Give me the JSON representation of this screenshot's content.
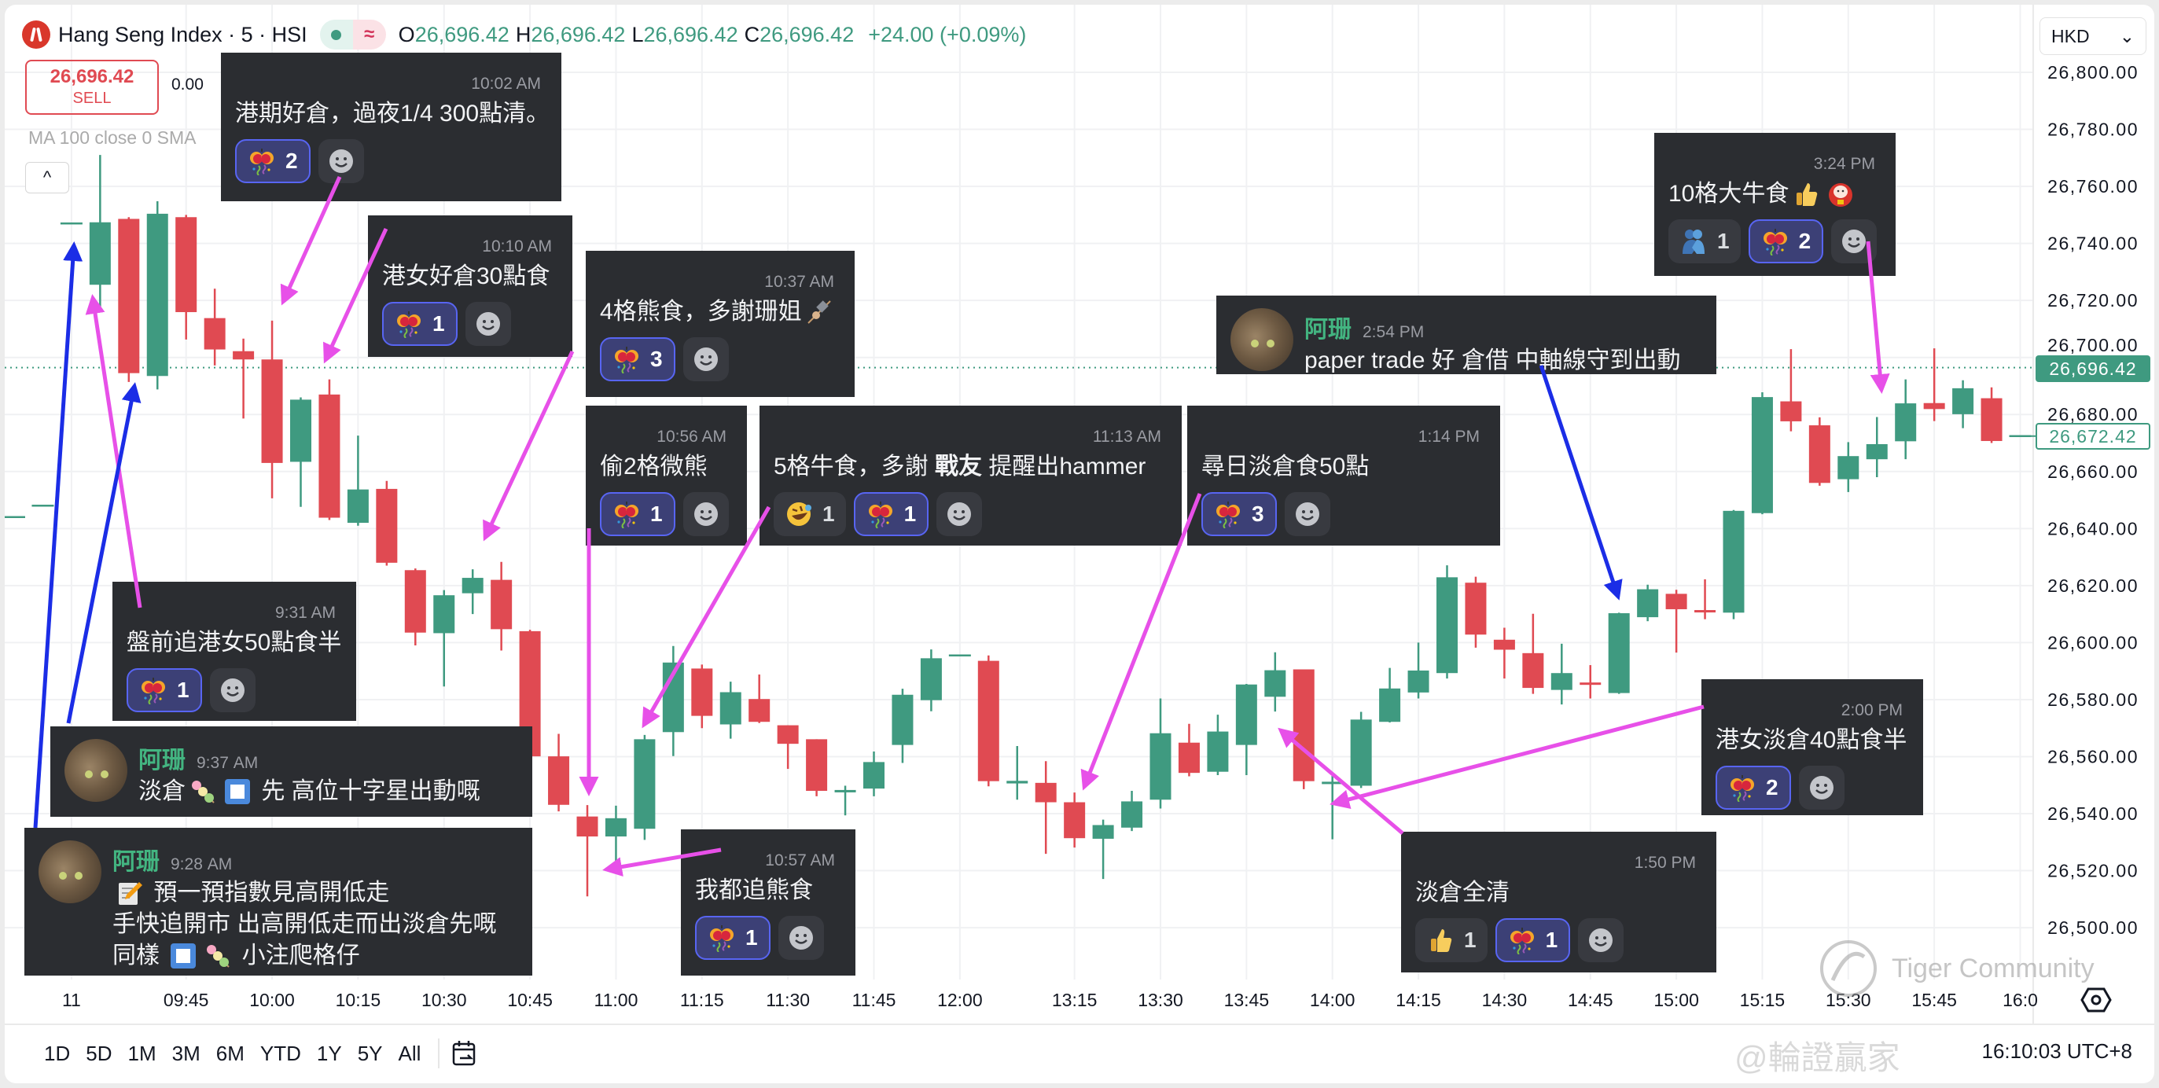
{
  "header": {
    "title": "Hang Seng Index · 5 · HSI",
    "status_symbol": "≈",
    "ohlc": [
      {
        "k": "O",
        "v": "26,696.42"
      },
      {
        "k": "H",
        "v": "26,696.42"
      },
      {
        "k": "L",
        "v": "26,696.42"
      },
      {
        "k": "C",
        "v": "26,696.42"
      }
    ],
    "change": "+24.00 (+0.09%)"
  },
  "order": {
    "sell_price": "26,696.42",
    "sell_label": "SELL",
    "spread": "0.00"
  },
  "indicator": "MA 100 close 0 SMA",
  "collapse_symbol": "^",
  "currency": {
    "value": "HKD",
    "chevron": "⌄"
  },
  "price_tags": {
    "last": "26,696.42",
    "close": "26,672.42"
  },
  "colors": {
    "up": "#3f9a80",
    "down": "#e04a52",
    "magenta_arrow": "#e750e8",
    "blue_arrow": "#1b2de6",
    "annotation_bg": "#2b2d31"
  },
  "chart_data": {
    "type": "candlestick",
    "interval": "5",
    "ylim": [
      26490,
      26810
    ],
    "grid": true,
    "yticks": [
      "26,800.00",
      "26,780.00",
      "26,760.00",
      "26,740.00",
      "26,720.00",
      "26,700.00",
      "26,680.00",
      "26,660.00",
      "26,640.00",
      "26,620.00",
      "26,600.00",
      "26,580.00",
      "26,560.00",
      "26,540.00",
      "26,520.00",
      "26,500.00"
    ],
    "xticks": [
      {
        "label": "11",
        "time": "09:25"
      },
      {
        "label": "09:45",
        "time": "09:45"
      },
      {
        "label": "10:00",
        "time": "10:00"
      },
      {
        "label": "10:15",
        "time": "10:15"
      },
      {
        "label": "10:30",
        "time": "10:30"
      },
      {
        "label": "10:45",
        "time": "10:45"
      },
      {
        "label": "11:00",
        "time": "11:00"
      },
      {
        "label": "11:15",
        "time": "11:15"
      },
      {
        "label": "11:30",
        "time": "11:30"
      },
      {
        "label": "11:45",
        "time": "11:45"
      },
      {
        "label": "12:00",
        "time": "12:00"
      },
      {
        "label": "13:15",
        "time": "13:15"
      },
      {
        "label": "13:30",
        "time": "13:30"
      },
      {
        "label": "13:45",
        "time": "13:45"
      },
      {
        "label": "14:00",
        "time": "14:00"
      },
      {
        "label": "14:15",
        "time": "14:15"
      },
      {
        "label": "14:30",
        "time": "14:30"
      },
      {
        "label": "14:45",
        "time": "14:45"
      },
      {
        "label": "15:00",
        "time": "15:00"
      },
      {
        "label": "15:15",
        "time": "15:15"
      },
      {
        "label": "15:30",
        "time": "15:30"
      },
      {
        "label": "15:45",
        "time": "15:45"
      },
      {
        "label": "16:0",
        "time": "16:00"
      }
    ],
    "last_price": 26696.42,
    "close_price": 26672.42,
    "candle_fields": [
      "time",
      "open",
      "high",
      "low",
      "close"
    ],
    "candles": [
      [
        "09:15",
        26644,
        26644,
        26644,
        26644
      ],
      [
        "09:20",
        26648,
        26648,
        26648,
        26648
      ],
      [
        "09:25",
        26747,
        26747,
        26747,
        26747
      ],
      [
        "09:30",
        26725.5,
        26771,
        26716.8,
        26747.4
      ],
      [
        "09:35",
        26748.6,
        26749.2,
        26691.4,
        26694.5
      ],
      [
        "09:40",
        26693.5,
        26754.8,
        26688.8,
        26750.4
      ],
      [
        "09:45",
        26749.2,
        26750,
        26706.3,
        26715.9
      ],
      [
        "09:50",
        26713.8,
        26724.1,
        26697.2,
        26702.8
      ],
      [
        "09:55",
        26702.2,
        26706.6,
        26678.6,
        26699.3
      ],
      [
        "10:00",
        26699.3,
        26712.9,
        26650.6,
        26663.0
      ],
      [
        "10:05",
        26663.4,
        26686,
        26647.6,
        26685.2
      ],
      [
        "10:10",
        26687,
        26692.3,
        26643,
        26643.8
      ],
      [
        "10:15",
        26642,
        26672.6,
        26641,
        26653.7
      ],
      [
        "10:20",
        26653.9,
        26656.7,
        26627,
        26628
      ],
      [
        "10:25",
        26625.4,
        26626,
        26599,
        26603.5
      ],
      [
        "10:30",
        26603.3,
        26618.4,
        26584.6,
        26616.6
      ],
      [
        "10:35",
        26617.3,
        26625.7,
        26610,
        26622.7
      ],
      [
        "10:40",
        26622,
        26628.3,
        26597.2,
        26604.7
      ],
      [
        "10:45",
        26604,
        26604.5,
        26559,
        26560.1
      ],
      [
        "10:50",
        26560.1,
        26568,
        26540.8,
        26543.1
      ],
      [
        "10:55",
        26539,
        26543,
        26511,
        26532
      ],
      [
        "11:00",
        26532,
        26542.8,
        26521.6,
        26538.4
      ],
      [
        "11:05",
        26534.7,
        26567.6,
        26530.8,
        26566.1
      ],
      [
        "11:10",
        26568.6,
        26598.8,
        26560.2,
        26593
      ],
      [
        "11:15",
        26590.9,
        26592.3,
        26570,
        26574.3
      ],
      [
        "11:20",
        26571.3,
        26586.3,
        26566.3,
        26582.6
      ],
      [
        "11:25",
        26580.2,
        26588.8,
        26571.8,
        26572.2
      ],
      [
        "11:30",
        26571,
        26571,
        26555.7,
        26564.5
      ],
      [
        "11:35",
        26566.1,
        26566.1,
        26546.1,
        26548
      ],
      [
        "11:40",
        26548,
        26549.8,
        26539.4,
        26548.3
      ],
      [
        "11:45",
        26548.8,
        26561.8,
        26546.1,
        26558.1
      ],
      [
        "11:50",
        26564.1,
        26583.8,
        26557.8,
        26581.7
      ],
      [
        "11:55",
        26579.8,
        26597.6,
        26575.9,
        26594.5
      ],
      [
        "12:00",
        26595.5,
        26595.5,
        26595.5,
        26595.5
      ],
      [
        "13:00",
        26593.6,
        26595.5,
        26549.6,
        26551.4
      ],
      [
        "13:05",
        26550.6,
        26563.7,
        26544.9,
        26551.5
      ],
      [
        "13:10",
        26550.8,
        26558.4,
        26525.9,
        26544
      ],
      [
        "13:15",
        26544,
        26547.4,
        26528.1,
        26531.4
      ],
      [
        "13:20",
        26531.2,
        26537.9,
        26517.1,
        26536
      ],
      [
        "13:25",
        26535.1,
        26548,
        26533.9,
        26544.3
      ],
      [
        "13:30",
        26544.9,
        26580.4,
        26541.8,
        26568.2
      ],
      [
        "13:35",
        26564.9,
        26571.5,
        26553.1,
        26554.3
      ],
      [
        "13:40",
        26554.7,
        26574.7,
        26553.5,
        26568.8
      ],
      [
        "13:45",
        26564.1,
        26585.5,
        26553.5,
        26585.3
      ],
      [
        "13:50",
        26581,
        26596.6,
        26575.8,
        26590.3
      ],
      [
        "13:55",
        26590.6,
        26590.6,
        26548.6,
        26551.4
      ],
      [
        "14:00",
        26551.2,
        26553.3,
        26531,
        26551.2
      ],
      [
        "14:05",
        26549.8,
        26575.7,
        26549,
        26573
      ],
      [
        "14:10",
        26572.2,
        26591.1,
        26572,
        26583.9
      ],
      [
        "14:15",
        26582.5,
        26600,
        26580.4,
        26590.2
      ],
      [
        "14:20",
        26589.3,
        26627.1,
        26587.4,
        26622.9
      ],
      [
        "14:25",
        26621,
        26623.1,
        26598.2,
        26602.8
      ],
      [
        "14:30",
        26601,
        26605.2,
        26587.4,
        26597.5
      ],
      [
        "14:35",
        26596.3,
        26610.1,
        26582,
        26584.1
      ],
      [
        "14:40",
        26583.4,
        26599.6,
        26578.3,
        26589.3
      ],
      [
        "14:45",
        26586,
        26592.1,
        26580.4,
        26585.6
      ],
      [
        "14:50",
        26582.3,
        26610.5,
        26582,
        26610.3
      ],
      [
        "14:55",
        26608.9,
        26620.3,
        26607.5,
        26618.7
      ],
      [
        "15:00",
        26617.1,
        26618.5,
        26596.5,
        26611.7
      ],
      [
        "15:05",
        26611.4,
        26622.2,
        26608.2,
        26611
      ],
      [
        "15:10",
        26610.5,
        26646.5,
        26608.2,
        26646.2
      ],
      [
        "15:15",
        26645.4,
        26687.8,
        26645,
        26686.1
      ],
      [
        "15:20",
        26684.6,
        26702.9,
        26674.1,
        26677.6
      ],
      [
        "15:25",
        26676.2,
        26679,
        26655,
        26656
      ],
      [
        "15:30",
        26657.3,
        26670.3,
        26652.8,
        26665.4
      ],
      [
        "15:35",
        26664.3,
        26679.1,
        26658,
        26669.6
      ],
      [
        "15:40",
        26670.6,
        26692.3,
        26664.3,
        26683.9
      ],
      [
        "15:45",
        26684,
        26703.2,
        26677.7,
        26681.9
      ],
      [
        "15:50",
        26680.1,
        26692,
        26675.2,
        26689.2
      ],
      [
        "15:55",
        26685.7,
        26689.5,
        26670,
        26670.7
      ],
      [
        "16:00",
        26672.42,
        26672.42,
        26672.42,
        26672.42
      ]
    ]
  },
  "annotations": [
    {
      "time": "10:02 AM",
      "message": [
        {
          "t": "港期好倉，過夜1/4 300點清。"
        }
      ],
      "reactions": [
        {
          "icon": "party-popper",
          "count": "2",
          "selected": true
        }
      ]
    },
    {
      "time": "10:10 AM",
      "message": [
        {
          "t": "港女好倉30點食"
        }
      ],
      "reactions": [
        {
          "icon": "party-popper",
          "count": "1",
          "selected": true
        }
      ]
    },
    {
      "time": "10:37 AM",
      "message": [
        {
          "t": "4格熊食，多謝珊姐"
        },
        {
          "icon": "oden-skewer"
        }
      ],
      "reactions": [
        {
          "icon": "party-popper",
          "count": "3",
          "selected": true
        }
      ]
    },
    {
      "time": "10:56 AM",
      "message": [
        {
          "t": "偷2格微熊"
        }
      ],
      "reactions": [
        {
          "icon": "party-popper",
          "count": "1",
          "selected": true
        }
      ]
    },
    {
      "time": "11:13 AM",
      "message": [
        {
          "t": "5格牛食，多謝 "
        },
        {
          "b": "戰友"
        },
        {
          "t": " 提醒出hammer"
        }
      ],
      "reactions": [
        {
          "icon": "rolling-laughing",
          "count": "1",
          "selected": false
        },
        {
          "icon": "party-popper",
          "count": "1",
          "selected": true
        }
      ]
    },
    {
      "time": "1:14 PM",
      "message": [
        {
          "t": "尋日淡倉食50點"
        }
      ],
      "reactions": [
        {
          "icon": "party-popper",
          "count": "3",
          "selected": true
        }
      ]
    },
    {
      "user": "阿珊",
      "time": "2:54 PM",
      "lines": [
        [
          {
            "t": "paper trade 好 倉借 中軸線守到出動"
          }
        ]
      ]
    },
    {
      "time": "3:24 PM",
      "message": [
        {
          "t": "10格大牛食"
        },
        {
          "icon": "thumbs-up"
        },
        {
          "icon": "daruma"
        }
      ],
      "reactions": [
        {
          "icon": "people-hugging",
          "count": "1",
          "selected": false
        },
        {
          "icon": "party-popper",
          "count": "2",
          "selected": true
        }
      ]
    },
    {
      "time": "9:31 AM",
      "message": [
        {
          "t": "盤前追港女50點食半"
        }
      ],
      "reactions": [
        {
          "icon": "party-popper",
          "count": "1",
          "selected": true
        }
      ]
    },
    {
      "user": "阿珊",
      "time": "9:37 AM",
      "lines": [
        [
          {
            "t": "淡倉"
          },
          {
            "icon": "dango"
          },
          {
            "icon": "blue-square"
          },
          {
            "t": " 先 高位十字星出動嘅"
          }
        ]
      ]
    },
    {
      "user": "阿珊",
      "time": "9:28 AM",
      "lines": [
        [
          {
            "icon": "memo"
          },
          {
            "t": " 預一預指數見高開低走"
          }
        ],
        [
          {
            "t": "手快追開市 出高開低走而出淡倉先嘅"
          }
        ],
        [
          {
            "t": "同樣 "
          },
          {
            "icon": "blue-square"
          },
          {
            "icon": "dango"
          },
          {
            "t": " 小注爬格仔"
          }
        ]
      ]
    },
    {
      "time": "10:57 AM",
      "message": [
        {
          "t": "我都追熊食"
        }
      ],
      "reactions": [
        {
          "icon": "party-popper",
          "count": "1",
          "selected": true
        }
      ]
    },
    {
      "time": "1:50 PM",
      "message": [
        {
          "t": "淡倉全清"
        }
      ],
      "reactions": [
        {
          "icon": "thumbs-up",
          "count": "1",
          "selected": false
        },
        {
          "icon": "party-popper",
          "count": "1",
          "selected": true
        }
      ]
    },
    {
      "time": "2:00 PM",
      "message": [
        {
          "t": "港女淡倉40點食半"
        }
      ],
      "reactions": [
        {
          "icon": "party-popper",
          "count": "2",
          "selected": true
        }
      ]
    }
  ],
  "range_buttons": [
    "1D",
    "5D",
    "1M",
    "3M",
    "6M",
    "YTD",
    "1Y",
    "5Y",
    "All"
  ],
  "clock": "16:10:03 UTC+8",
  "watermarks": {
    "community": "Tiger Community",
    "author": "@輪證贏家"
  }
}
